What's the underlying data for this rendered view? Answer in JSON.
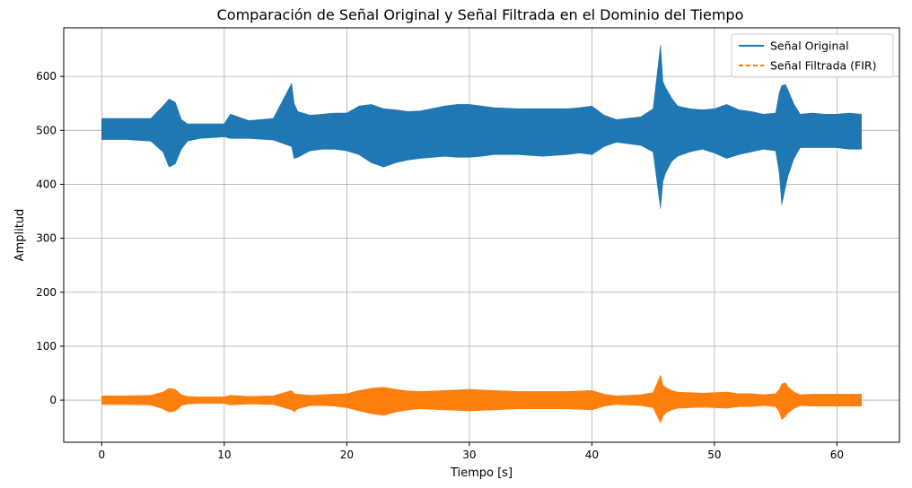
{
  "chart_data": {
    "type": "line",
    "title": "Comparación de Señal Original y Señal Filtrada en el Dominio del Tiempo",
    "xlabel": "Tiempo [s]",
    "ylabel": "Amplitud",
    "xlim": [
      -3.1,
      65.1
    ],
    "ylim": [
      -78,
      690
    ],
    "xticks": [
      0,
      10,
      20,
      30,
      40,
      50,
      60
    ],
    "yticks": [
      0,
      100,
      200,
      300,
      400,
      500,
      600
    ],
    "grid": true,
    "legend_position": "top-right",
    "series": [
      {
        "name": "Señal Original",
        "color": "#1f77b4",
        "style": "solid",
        "x": [
          0,
          2,
          4,
          5,
          5.5,
          6,
          6.5,
          7,
          8,
          10,
          10.5,
          12,
          14,
          15.5,
          15.7,
          16,
          17,
          18,
          19,
          20,
          21,
          22,
          23,
          24,
          25,
          26,
          28,
          29,
          30,
          31,
          32,
          34,
          36,
          38,
          39,
          40,
          41,
          42,
          44,
          45,
          45.6,
          45.8,
          46,
          46.5,
          47,
          48,
          49,
          50,
          51,
          52,
          53,
          54,
          55,
          55.3,
          55.5,
          55.8,
          56,
          56.5,
          57,
          58,
          59,
          60,
          61,
          62
        ],
        "upper": [
          522,
          522,
          522,
          545,
          558,
          552,
          520,
          512,
          512,
          512,
          530,
          518,
          522,
          587,
          550,
          535,
          528,
          530,
          532,
          532,
          545,
          548,
          540,
          538,
          535,
          536,
          545,
          548,
          548,
          545,
          542,
          540,
          540,
          540,
          542,
          545,
          528,
          520,
          525,
          540,
          658,
          590,
          580,
          560,
          545,
          540,
          538,
          540,
          548,
          538,
          535,
          530,
          532,
          570,
          583,
          585,
          575,
          548,
          530,
          532,
          530,
          530,
          532,
          530
        ],
        "lower": [
          483,
          483,
          480,
          460,
          432,
          438,
          465,
          480,
          485,
          488,
          485,
          485,
          482,
          470,
          448,
          450,
          462,
          465,
          465,
          462,
          455,
          440,
          432,
          440,
          445,
          448,
          452,
          450,
          450,
          452,
          455,
          455,
          452,
          455,
          458,
          455,
          470,
          478,
          472,
          460,
          355,
          405,
          420,
          442,
          452,
          460,
          465,
          458,
          448,
          455,
          460,
          465,
          462,
          420,
          362,
          395,
          415,
          448,
          468,
          468,
          468,
          468,
          465,
          465
        ]
      },
      {
        "name": "Señal Filtrada (FIR)",
        "color": "#ff7f0e",
        "style": "dashed",
        "x": [
          0,
          2,
          4,
          5,
          5.5,
          6,
          6.5,
          7,
          8,
          10,
          10.5,
          12,
          14,
          15.5,
          15.7,
          16,
          17,
          18,
          19,
          20,
          21,
          22,
          23,
          24,
          25,
          26,
          28,
          29,
          30,
          31,
          32,
          34,
          36,
          38,
          39,
          40,
          41,
          42,
          44,
          45,
          45.6,
          45.8,
          46,
          46.5,
          47,
          48,
          49,
          50,
          51,
          52,
          53,
          54,
          55,
          55.3,
          55.5,
          55.8,
          56,
          56.5,
          57,
          58,
          59,
          60,
          61,
          62
        ],
        "upper": [
          8,
          8,
          9,
          15,
          22,
          20,
          10,
          7,
          6,
          6,
          9,
          7,
          8,
          18,
          12,
          11,
          9,
          10,
          11,
          12,
          18,
          22,
          24,
          20,
          17,
          16,
          18,
          19,
          20,
          19,
          18,
          16,
          16,
          16,
          17,
          18,
          11,
          8,
          10,
          14,
          46,
          28,
          24,
          18,
          15,
          14,
          13,
          14,
          15,
          12,
          12,
          10,
          12,
          20,
          30,
          32,
          25,
          15,
          10,
          11,
          11,
          11,
          11,
          11
        ],
        "lower": [
          -8,
          -8,
          -9,
          -16,
          -22,
          -20,
          -10,
          -7,
          -6,
          -6,
          -9,
          -7,
          -8,
          -18,
          -22,
          -16,
          -10,
          -10,
          -11,
          -14,
          -20,
          -25,
          -28,
          -22,
          -18,
          -16,
          -18,
          -19,
          -20,
          -19,
          -18,
          -16,
          -16,
          -16,
          -17,
          -18,
          -11,
          -8,
          -10,
          -14,
          -42,
          -30,
          -24,
          -18,
          -15,
          -14,
          -13,
          -14,
          -15,
          -12,
          -12,
          -10,
          -12,
          -22,
          -36,
          -30,
          -24,
          -15,
          -10,
          -11,
          -11,
          -11,
          -11,
          -11
        ]
      }
    ]
  }
}
